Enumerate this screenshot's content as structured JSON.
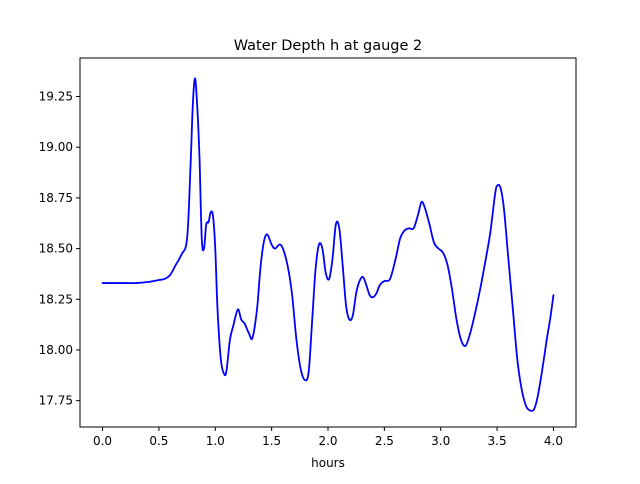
{
  "chart_data": {
    "type": "line",
    "title": "Water Depth h at gauge 2",
    "xlabel": "hours",
    "ylabel": "",
    "xlim": [
      -0.2,
      4.2
    ],
    "ylim": [
      17.62,
      19.44
    ],
    "xticks": [
      0.0,
      0.5,
      1.0,
      1.5,
      2.0,
      2.5,
      3.0,
      3.5,
      4.0
    ],
    "xtick_labels": [
      "0.0",
      "0.5",
      "1.0",
      "1.5",
      "2.0",
      "2.5",
      "3.0",
      "3.5",
      "4.0"
    ],
    "yticks": [
      17.75,
      18.0,
      18.25,
      18.5,
      18.75,
      19.0,
      19.25
    ],
    "ytick_labels": [
      "17.75",
      "18.00",
      "18.25",
      "18.50",
      "18.75",
      "19.00",
      "19.25"
    ],
    "grid": false,
    "legend": "none",
    "series": [
      {
        "color": "#0000ff",
        "x": [
          0.0,
          0.1,
          0.2,
          0.3,
          0.4,
          0.5,
          0.55,
          0.6,
          0.65,
          0.7,
          0.75,
          0.78,
          0.8,
          0.82,
          0.84,
          0.86,
          0.88,
          0.9,
          0.92,
          0.94,
          0.96,
          0.98,
          1.0,
          1.02,
          1.05,
          1.08,
          1.1,
          1.13,
          1.16,
          1.2,
          1.23,
          1.26,
          1.3,
          1.33,
          1.37,
          1.4,
          1.43,
          1.46,
          1.5,
          1.53,
          1.57,
          1.6,
          1.64,
          1.68,
          1.72,
          1.76,
          1.8,
          1.83,
          1.86,
          1.89,
          1.92,
          1.95,
          1.98,
          2.01,
          2.04,
          2.07,
          2.1,
          2.13,
          2.16,
          2.19,
          2.22,
          2.25,
          2.28,
          2.31,
          2.34,
          2.37,
          2.4,
          2.43,
          2.46,
          2.5,
          2.55,
          2.6,
          2.64,
          2.68,
          2.72,
          2.76,
          2.8,
          2.83,
          2.86,
          2.9,
          2.94,
          2.98,
          3.02,
          3.06,
          3.1,
          3.14,
          3.18,
          3.22,
          3.26,
          3.3,
          3.35,
          3.4,
          3.44,
          3.48,
          3.5,
          3.53,
          3.56,
          3.6,
          3.64,
          3.68,
          3.72,
          3.76,
          3.8,
          3.83,
          3.86,
          3.9,
          3.94,
          3.97,
          4.0
        ],
        "y": [
          18.33,
          18.33,
          18.33,
          18.33,
          18.335,
          18.345,
          18.35,
          18.37,
          18.42,
          18.47,
          18.55,
          18.9,
          19.2,
          19.34,
          19.2,
          18.95,
          18.55,
          18.5,
          18.62,
          18.63,
          18.68,
          18.66,
          18.5,
          18.2,
          17.95,
          17.88,
          17.9,
          18.05,
          18.12,
          18.2,
          18.15,
          18.13,
          18.08,
          18.06,
          18.2,
          18.4,
          18.53,
          18.57,
          18.52,
          18.5,
          18.52,
          18.5,
          18.42,
          18.28,
          18.05,
          17.9,
          17.85,
          17.9,
          18.15,
          18.4,
          18.52,
          18.5,
          18.38,
          18.35,
          18.45,
          18.62,
          18.6,
          18.42,
          18.22,
          18.15,
          18.17,
          18.28,
          18.34,
          18.36,
          18.32,
          18.27,
          18.26,
          18.28,
          18.32,
          18.34,
          18.35,
          18.45,
          18.55,
          18.59,
          18.6,
          18.6,
          18.67,
          18.73,
          18.7,
          18.62,
          18.53,
          18.5,
          18.48,
          18.42,
          18.3,
          18.15,
          18.05,
          18.02,
          18.08,
          18.17,
          18.3,
          18.45,
          18.58,
          18.76,
          18.81,
          18.8,
          18.7,
          18.45,
          18.2,
          17.95,
          17.8,
          17.72,
          17.7,
          17.71,
          17.77,
          17.9,
          18.05,
          18.15,
          18.27
        ]
      }
    ]
  }
}
